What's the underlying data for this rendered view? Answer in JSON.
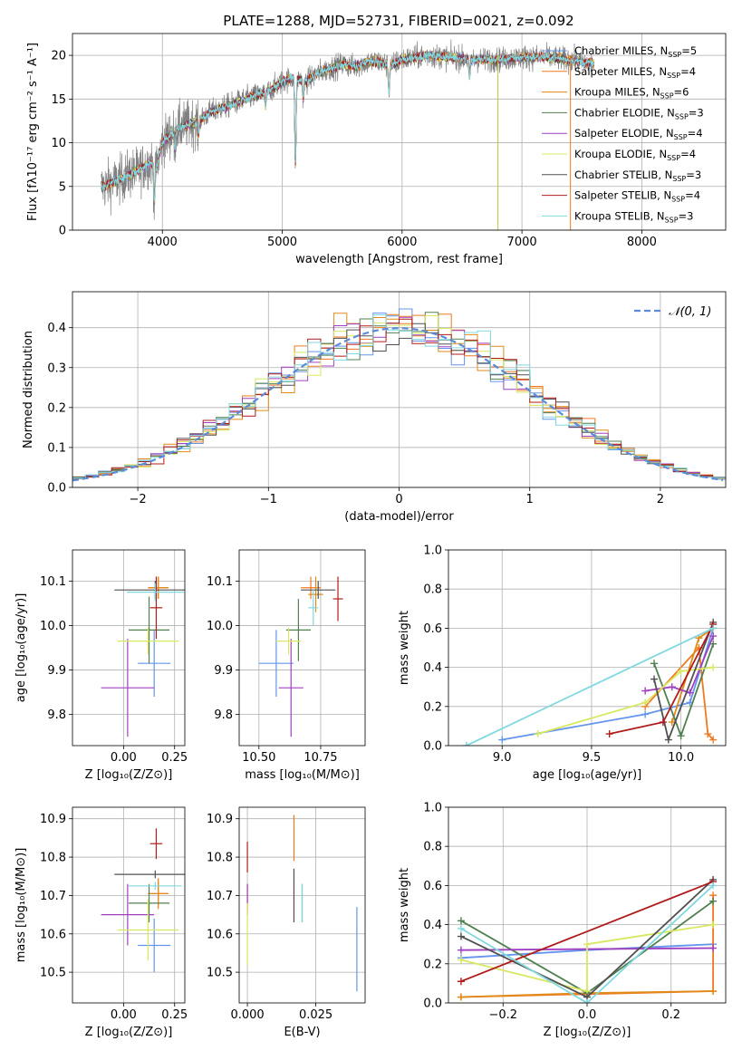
{
  "figure": {
    "title": "PLATE=1288, MJD=52731, FIBERID=0021, z=0.092"
  },
  "model_colors": [
    "#6495ed",
    "#f07820",
    "#e08a18",
    "#508050",
    "#a040c0",
    "#d8e860",
    "#505050",
    "#b01c1c",
    "#80d8e0"
  ],
  "chart_data": [
    {
      "id": "spectrum",
      "type": "line",
      "title": "PLATE=1288, MJD=52731, FIBERID=0021, z=0.092",
      "xlabel": "wavelength [Angstrom, rest frame]",
      "ylabel": "Flux [fλ10⁻¹⁷ erg cm⁻² s⁻¹ A⁻¹]",
      "xlim": [
        3250,
        8700
      ],
      "ylim": [
        0,
        22.5
      ],
      "xticks": [
        4000,
        5000,
        6000,
        7000,
        8000
      ],
      "yticks": [
        0,
        5,
        10,
        15,
        20
      ],
      "legend_position": "upper right",
      "legend": [
        {
          "label": "Chabrier MILES, N",
          "sub": "SSP",
          "tail": "=5"
        },
        {
          "label": "Salpeter MILES, N",
          "sub": "SSP",
          "tail": "=4"
        },
        {
          "label": "Kroupa MILES, N",
          "sub": "SSP",
          "tail": "=6"
        },
        {
          "label": "Chabrier ELODIE, N",
          "sub": "SSP",
          "tail": "=3"
        },
        {
          "label": "Salpeter ELODIE, N",
          "sub": "SSP",
          "tail": "=4"
        },
        {
          "label": "Kroupa ELODIE, N",
          "sub": "SSP",
          "tail": "=4"
        },
        {
          "label": "Chabrier STELIB, N",
          "sub": "SSP",
          "tail": "=3"
        },
        {
          "label": "Salpeter STELIB, N",
          "sub": "SSP",
          "tail": "=4"
        },
        {
          "label": "Kroupa STELIB, N",
          "sub": "SSP",
          "tail": "=3"
        }
      ],
      "continuum": [
        [
          3500,
          5.0
        ],
        [
          3600,
          5.5
        ],
        [
          3700,
          6.2
        ],
        [
          3800,
          6.8
        ],
        [
          3900,
          7.8
        ],
        [
          3950,
          7.2
        ],
        [
          4000,
          10.0
        ],
        [
          4100,
          11.5
        ],
        [
          4200,
          12.0
        ],
        [
          4300,
          12.5
        ],
        [
          4400,
          13.5
        ],
        [
          4500,
          14.0
        ],
        [
          4600,
          14.5
        ],
        [
          4700,
          15.0
        ],
        [
          4800,
          15.5
        ],
        [
          4900,
          16.0
        ],
        [
          5000,
          17.0
        ],
        [
          5100,
          17.5
        ],
        [
          5200,
          17.0
        ],
        [
          5300,
          18.0
        ],
        [
          5400,
          18.5
        ],
        [
          5500,
          19.0
        ],
        [
          5600,
          18.7
        ],
        [
          5700,
          19.2
        ],
        [
          5800,
          19.3
        ],
        [
          5900,
          18.8
        ],
        [
          6000,
          19.5
        ],
        [
          6200,
          20.0
        ],
        [
          6400,
          19.8
        ],
        [
          6600,
          19.5
        ],
        [
          6800,
          19.5
        ],
        [
          7000,
          19.8
        ],
        [
          7200,
          19.8
        ],
        [
          7400,
          19.5
        ],
        [
          7600,
          19.0
        ]
      ],
      "features": [
        [
          3933,
          -4.0
        ],
        [
          4102,
          -2.0
        ],
        [
          4300,
          -1.5
        ],
        [
          4861,
          -1.5
        ],
        [
          5110,
          -10.0
        ],
        [
          5175,
          -2.0
        ],
        [
          5890,
          -3.0
        ],
        [
          6563,
          -2.0
        ]
      ]
    },
    {
      "id": "residuals",
      "type": "histogram",
      "xlabel": "(data-model)/error",
      "ylabel": "Normed distribution",
      "xlim": [
        -2.5,
        2.5
      ],
      "ylim": [
        0,
        0.49
      ],
      "xticks": [
        -2,
        -1,
        0,
        1,
        2
      ],
      "yticks": [
        0.0,
        0.1,
        0.2,
        0.3,
        0.4
      ],
      "legend": "𝒩(0, 1)",
      "bin_width": 0.1
    },
    {
      "id": "z-age",
      "type": "errorbar",
      "xlabel": "Z [log₁₀(Z/Z⊙)]",
      "ylabel": "age  [log₁₀(age/yr)]",
      "xlim": [
        -0.25,
        0.3
      ],
      "ylim": [
        9.73,
        10.17
      ],
      "xticks": [
        0.0,
        0.25
      ],
      "yticks": [
        9.8,
        9.9,
        10.0,
        10.1
      ],
      "points": [
        {
          "x": 0.15,
          "xerr": 0.08,
          "y": 9.915,
          "yerr": 0.075
        },
        {
          "x": 0.17,
          "xerr": 0.05,
          "y": 10.085,
          "yerr": 0.025
        },
        {
          "x": 0.17,
          "xerr": 0.05,
          "y": 10.085,
          "yerr": 0.025
        },
        {
          "x": 0.125,
          "xerr": 0.1,
          "y": 9.99,
          "yerr": 0.075
        },
        {
          "x": 0.02,
          "xerr": 0.13,
          "y": 9.86,
          "yerr": 0.11
        },
        {
          "x": 0.12,
          "xerr": 0.15,
          "y": 9.965,
          "yerr": 0.03
        },
        {
          "x": 0.155,
          "xerr": 0.2,
          "y": 10.08,
          "yerr": 0.02
        },
        {
          "x": 0.16,
          "xerr": 0.03,
          "y": 10.04,
          "yerr": 0.07
        },
        {
          "x": 0.155,
          "xerr": 0.14,
          "y": 10.075,
          "yerr": 0.02
        }
      ]
    },
    {
      "id": "mass-age",
      "type": "errorbar",
      "xlabel": "mass [log₁₀(M/M⊙)]",
      "ylabel": "",
      "xlim": [
        10.42,
        10.93
      ],
      "ylim": [
        9.73,
        10.17
      ],
      "xticks": [
        10.5,
        10.75
      ],
      "yticks": [
        9.8,
        9.9,
        10.0,
        10.1
      ],
      "points": [
        {
          "x": 10.57,
          "xerr": 0.07,
          "y": 9.915,
          "yerr": 0.075
        },
        {
          "x": 10.71,
          "xerr": 0.04,
          "y": 10.085,
          "yerr": 0.025
        },
        {
          "x": 10.73,
          "xerr": 0.03,
          "y": 10.07,
          "yerr": 0.04
        },
        {
          "x": 10.66,
          "xerr": 0.05,
          "y": 9.99,
          "yerr": 0.07
        },
        {
          "x": 10.63,
          "xerr": 0.05,
          "y": 9.86,
          "yerr": 0.11
        },
        {
          "x": 10.62,
          "xerr": 0.05,
          "y": 9.965,
          "yerr": 0.03
        },
        {
          "x": 10.74,
          "xerr": 0.07,
          "y": 10.08,
          "yerr": 0.02
        },
        {
          "x": 10.82,
          "xerr": 0.02,
          "y": 10.06,
          "yerr": 0.05
        },
        {
          "x": 10.72,
          "xerr": 0.02,
          "y": 10.04,
          "yerr": 0.04
        }
      ]
    },
    {
      "id": "age-weight",
      "type": "line",
      "xlabel": "age  [log₁₀(age/yr)]",
      "ylabel": "mass weight",
      "xlim": [
        8.7,
        10.25
      ],
      "ylim": [
        0.0,
        1.0
      ],
      "xticks": [
        9.0,
        9.5,
        10.0
      ],
      "yticks": [
        0.0,
        0.2,
        0.4,
        0.6,
        0.8,
        1.0
      ],
      "series": [
        {
          "x": [
            9.0,
            9.8,
            10.05,
            10.18
          ],
          "y": [
            0.03,
            0.16,
            0.22,
            0.6
          ]
        },
        {
          "x": [
            9.8,
            10.1,
            10.15,
            10.18
          ],
          "y": [
            0.2,
            0.5,
            0.06,
            0.03
          ]
        },
        {
          "x": [
            9.95,
            10.1,
            10.18
          ],
          "y": [
            0.12,
            0.55,
            0.6
          ]
        },
        {
          "x": [
            9.85,
            10.0,
            10.18
          ],
          "y": [
            0.42,
            0.05,
            0.52
          ]
        },
        {
          "x": [
            9.8,
            9.95,
            10.05,
            10.18
          ],
          "y": [
            0.28,
            0.3,
            0.27,
            0.56
          ]
        },
        {
          "x": [
            9.2,
            9.8,
            10.0,
            10.18
          ],
          "y": [
            0.06,
            0.22,
            0.38,
            0.4
          ]
        },
        {
          "x": [
            9.85,
            9.93,
            10.18
          ],
          "y": [
            0.34,
            0.03,
            0.63
          ]
        },
        {
          "x": [
            9.6,
            9.9,
            10.18
          ],
          "y": [
            0.06,
            0.12,
            0.62
          ]
        },
        {
          "x": [
            8.8,
            10.18
          ],
          "y": [
            0.0,
            0.6
          ]
        }
      ]
    },
    {
      "id": "z-mass",
      "type": "errorbar",
      "xlabel": "Z [log₁₀(Z/Z⊙)]",
      "ylabel": "mass [log₁₀(M/M⊙)]",
      "xlim": [
        -0.25,
        0.3
      ],
      "ylim": [
        10.42,
        10.93
      ],
      "xticks": [
        0.0,
        0.25
      ],
      "yticks": [
        10.5,
        10.6,
        10.7,
        10.8,
        10.9
      ],
      "points": [
        {
          "x": 0.15,
          "xerr": 0.08,
          "y": 10.57,
          "yerr": 0.07
        },
        {
          "x": 0.17,
          "xerr": 0.05,
          "y": 10.705,
          "yerr": 0.04
        },
        {
          "x": 0.17,
          "xerr": 0.05,
          "y": 10.705,
          "yerr": 0.03
        },
        {
          "x": 0.125,
          "xerr": 0.1,
          "y": 10.68,
          "yerr": 0.05
        },
        {
          "x": 0.02,
          "xerr": 0.13,
          "y": 10.65,
          "yerr": 0.08
        },
        {
          "x": 0.12,
          "xerr": 0.15,
          "y": 10.61,
          "yerr": 0.08
        },
        {
          "x": 0.155,
          "xerr": 0.2,
          "y": 10.755,
          "yerr": 0.01
        },
        {
          "x": 0.16,
          "xerr": 0.03,
          "y": 10.835,
          "yerr": 0.04
        },
        {
          "x": 0.155,
          "xerr": 0.13,
          "y": 10.725,
          "yerr": 0.01
        }
      ]
    },
    {
      "id": "ebv-mass",
      "type": "errorbar",
      "xlabel": "E(B-V)",
      "ylabel": "",
      "xlim": [
        -0.003,
        0.043
      ],
      "ylim": [
        10.42,
        10.93
      ],
      "xticks": [
        0.0,
        0.025
      ],
      "yticks": [
        10.5,
        10.6,
        10.7,
        10.8,
        10.9
      ],
      "points": [
        {
          "x": 0.04,
          "xerr": 0,
          "y": 10.56,
          "yerr": 0.11
        },
        {
          "x": 0.017,
          "xerr": 0,
          "y": 10.85,
          "yerr": 0.06
        },
        {
          "x": 0.0,
          "xerr": 0,
          "y": 10.7,
          "yerr": 0.03
        },
        {
          "x": 0.02,
          "xerr": 0,
          "y": 10.68,
          "yerr": 0.05
        },
        {
          "x": 0.0,
          "xerr": 0,
          "y": 10.69,
          "yerr": 0.04
        },
        {
          "x": 0.0,
          "xerr": 0,
          "y": 10.6,
          "yerr": 0.08
        },
        {
          "x": 0.017,
          "xerr": 0,
          "y": 10.7,
          "yerr": 0.07
        },
        {
          "x": 0.0,
          "xerr": 0,
          "y": 10.8,
          "yerr": 0.04
        },
        {
          "x": 0.02,
          "xerr": 0,
          "y": 10.68,
          "yerr": 0.05
        }
      ]
    },
    {
      "id": "z-weight",
      "type": "line",
      "xlabel": "Z [log₁₀(Z/Z⊙)]",
      "ylabel": "mass weight",
      "xlim": [
        -0.33,
        0.33
      ],
      "ylim": [
        0.0,
        1.0
      ],
      "xticks": [
        -0.2,
        0.0,
        0.2
      ],
      "yticks": [
        0.0,
        0.2,
        0.4,
        0.6,
        0.8,
        1.0
      ],
      "series": [
        {
          "x": [
            -0.3,
            0.0,
            0.3
          ],
          "y": [
            0.23,
            0.27,
            0.3
          ]
        },
        {
          "x": [
            -0.3,
            0.3,
            0.3
          ],
          "y": [
            0.03,
            0.06,
            0.55
          ]
        },
        {
          "x": [
            -0.3,
            0.0,
            0.3
          ],
          "y": [
            0.03,
            0.05,
            0.06
          ]
        },
        {
          "x": [
            -0.3,
            0.0,
            0.3
          ],
          "y": [
            0.42,
            0.05,
            0.52
          ]
        },
        {
          "x": [
            -0.3,
            0.3
          ],
          "y": [
            0.27,
            0.28
          ]
        },
        {
          "x": [
            -0.3,
            0.0,
            0.0,
            0.3
          ],
          "y": [
            0.22,
            0.06,
            0.3,
            0.4
          ]
        },
        {
          "x": [
            -0.3,
            0.0,
            0.3
          ],
          "y": [
            0.34,
            0.03,
            0.63
          ]
        },
        {
          "x": [
            -0.3,
            0.3
          ],
          "y": [
            0.11,
            0.62
          ]
        },
        {
          "x": [
            -0.3,
            0.0,
            0.3
          ],
          "y": [
            0.38,
            0.0,
            0.6
          ]
        }
      ]
    }
  ]
}
